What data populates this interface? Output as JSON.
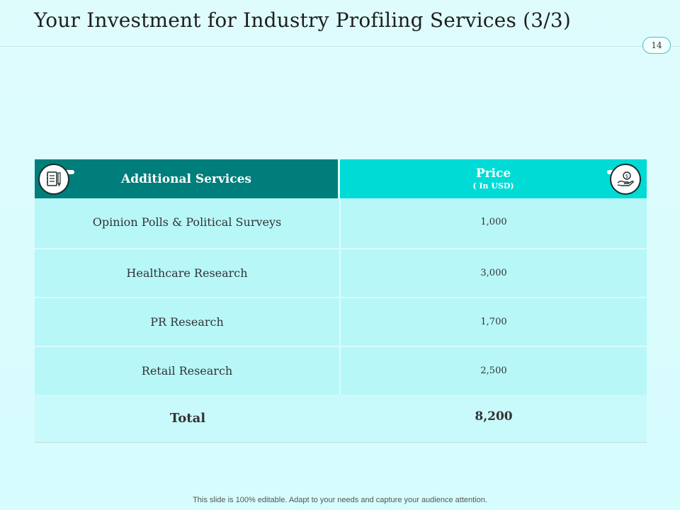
{
  "slide": {
    "title": "Your Investment for Industry Profiling Services (3/3)",
    "page_number": "14",
    "footer": "This slide is 100% editable. Adapt to your needs and capture your audience attention."
  },
  "table": {
    "header_left": "Additional Services",
    "header_right_main": "Price",
    "header_right_sub": "( In USD)",
    "header_left_icon": "notepad-pencil-icon",
    "header_right_icon": "hand-coin-icon",
    "rows": [
      {
        "service": "Opinion Polls & Political Surveys",
        "price": "1,000"
      },
      {
        "service": "Healthcare Research",
        "price": "3,000"
      },
      {
        "service": "PR Research",
        "price": "1,700"
      },
      {
        "service": "Retail Research",
        "price": "2,500"
      }
    ],
    "total_label": "Total",
    "total_value": "8,200"
  },
  "colors": {
    "header_dark": "#007e7b",
    "header_light": "#00dbd6",
    "row_bg": "#b7f7f8",
    "background": "#dffcfd"
  }
}
